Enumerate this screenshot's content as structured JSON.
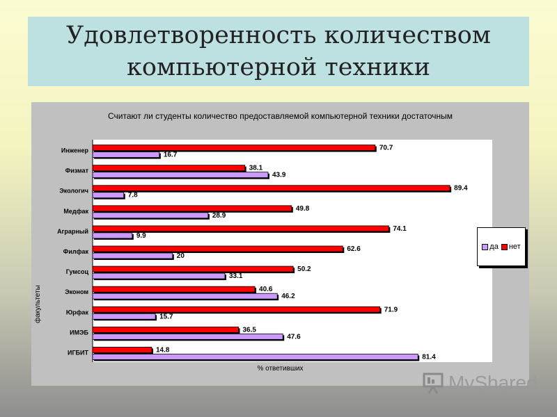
{
  "slide": {
    "title_line1": "Удовлетворенность количеством",
    "title_line2": "компьютерной техники"
  },
  "watermark": {
    "text": "MyShared"
  },
  "colors": {
    "da": "#cc99ff",
    "net": "#ff0000"
  },
  "chart_data": {
    "type": "bar",
    "orientation": "horizontal",
    "title": "Считают ли студенты количество предоставляемой компьютерной техники достаточным",
    "xlabel": "% ответивших",
    "ylabel": "факультеты",
    "xlim": [
      0,
      100
    ],
    "grid": false,
    "legend_position": "right",
    "categories": [
      "Инженер",
      "Физмат",
      "Экологич",
      "Медфак",
      "Аграрный",
      "Филфак",
      "Гумсоц",
      "Эконом",
      "Юрфак",
      "ИМЭБ",
      "ИГБИТ"
    ],
    "series": [
      {
        "name": "да",
        "values": [
          16.7,
          43.9,
          7.8,
          28.9,
          9.9,
          20,
          33.1,
          46.2,
          15.7,
          47.6,
          81.4
        ]
      },
      {
        "name": "нет",
        "values": [
          70.7,
          38.1,
          89.4,
          49.8,
          74.1,
          62.6,
          50.2,
          40.6,
          71.9,
          36.5,
          14.8
        ]
      }
    ]
  }
}
